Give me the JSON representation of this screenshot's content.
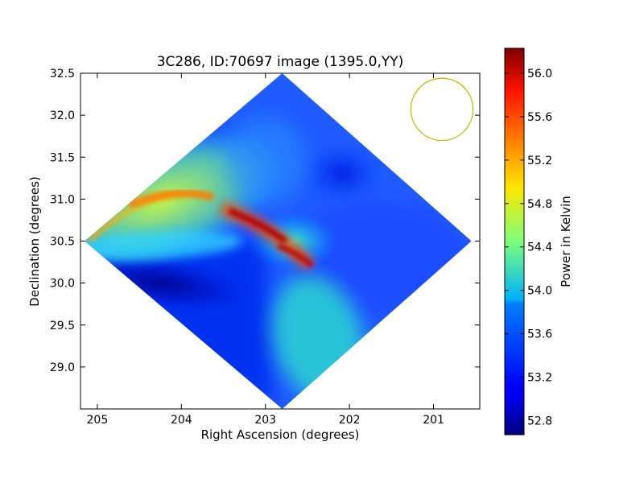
{
  "chart_data": {
    "type": "heatmap",
    "title": "3C286, ID:70697 image (1395.0,YY)",
    "xlabel": "Right Ascension (degrees)",
    "ylabel": "Declination (degrees)",
    "xlim": [
      205.2,
      200.45
    ],
    "ylim": [
      28.5,
      32.5
    ],
    "x_ticks": [
      "205",
      "204",
      "203",
      "202",
      "201"
    ],
    "x_tick_values": [
      205,
      204,
      203,
      202,
      201
    ],
    "y_ticks": [
      "29.0",
      "29.5",
      "30.0",
      "30.5",
      "31.0",
      "31.5",
      "32.0",
      "32.5"
    ],
    "y_tick_values": [
      29.0,
      29.5,
      30.0,
      30.5,
      31.0,
      31.5,
      32.0,
      32.5
    ],
    "colorbar": {
      "label": "Power in Kelvin",
      "min": 52.67,
      "max": 56.23,
      "ticks": [
        "52.8",
        "53.2",
        "53.6",
        "54.0",
        "54.4",
        "54.8",
        "55.2",
        "55.6",
        "56.0"
      ],
      "tick_values": [
        52.8,
        53.2,
        53.6,
        54.0,
        54.4,
        54.8,
        55.2,
        55.6,
        56.0
      ],
      "colormap": "jet"
    },
    "image_footprint": {
      "shape": "diamond",
      "vertices_ra_dec": [
        [
          202.8,
          32.5
        ],
        [
          200.55,
          30.5
        ],
        [
          202.8,
          28.5
        ],
        [
          205.15,
          30.5
        ]
      ]
    },
    "beam_circle": {
      "ra": 200.9,
      "dec": 32.07,
      "radius_deg": 0.37,
      "color": "#bfbf00"
    },
    "features": [
      {
        "name": "bright arc",
        "peak_kelvin": 56.2,
        "location_ra_dec": [
          202.95,
          30.55
        ]
      },
      {
        "name": "northern arm",
        "value_kelvin": 55.2,
        "location_ra_dec": [
          204.4,
          31.05
        ]
      },
      {
        "name": "southern trough",
        "value_kelvin": 52.7,
        "location_ra_dec": [
          204.4,
          30.0
        ]
      }
    ],
    "grid": false
  }
}
